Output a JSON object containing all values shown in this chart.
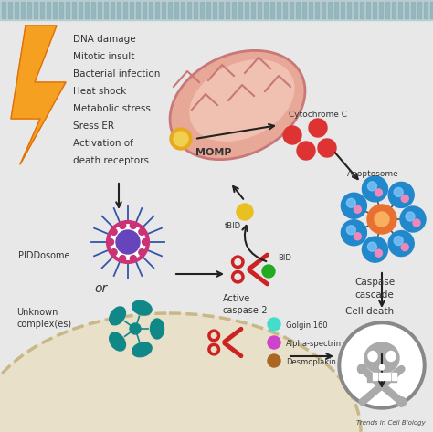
{
  "bg_color": "#e8e8e8",
  "membrane_color": "#b8cdd0",
  "membrane_stripe_color": "#8ab0b8",
  "cell_interior_color": "#e8e0c8",
  "cell_border_color": "#c8b888",
  "title_text": "Trends in Cell Biology",
  "stress_labels": [
    "DNA damage",
    "Mitotic insult",
    "Bacterial infection",
    "Heat shock",
    "Metabolic stress",
    "Sress ER",
    "Activation of",
    "death receptors"
  ],
  "lightning_color": "#f5a020",
  "lightning_outline": "#e07010",
  "mitochondria_fill": "#e8a898",
  "mitochondria_inner": "#f0c0b0",
  "mitochondria_stroke": "#c87878",
  "momp_label": "MOMP",
  "momp_color": "#e8a820",
  "cytc_label": "Cytochrome C",
  "cytc_dot_color": "#dd3333",
  "apoptosome_label": "Apoptosome",
  "apoptosome_ring_color": "#2288cc",
  "apoptosome_center_color": "#e87030",
  "apoptosome_spoke_color": "#555555",
  "tbid_label": "tBID",
  "tbid_color": "#e8c020",
  "bid_label": "BID",
  "bid_dot_color": "#22aa22",
  "scissors_color": "#cc2222",
  "active_caspase2_label": [
    "Active",
    "caspase-2"
  ],
  "piddosome_label": "PIDDosome",
  "piddosome_ring_color": "#cc3377",
  "piddosome_center_color": "#6644bb",
  "piddosome_ray_color": "#3355aa",
  "unknown_complex_label": [
    "Unknown",
    "complex(es)"
  ],
  "unknown_complex_color": "#118888",
  "or_label": "or",
  "caspase_cascade_label": [
    "Caspase",
    "cascade"
  ],
  "cell_death_label": "Cell death",
  "skull_outer_color": "#555555",
  "skull_bg_color": "#ffffff",
  "skull_icon_color": "#888888",
  "golgin_label": "Golgin 160",
  "golgin_color": "#44ddcc",
  "alphaspectrin_label": "Alpha-spectrin",
  "alphaspectrin_color": "#cc44cc",
  "desmoplakin_label": "Desmoplakin",
  "desmoplakin_color": "#aa6622",
  "arrow_color": "#222222",
  "text_color": "#333333",
  "label_fontsize": 7.0,
  "small_fontsize": 6.0
}
